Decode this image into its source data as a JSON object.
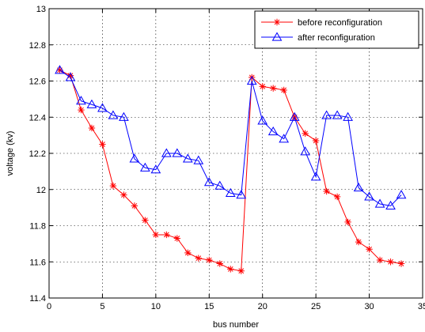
{
  "chart_data": {
    "type": "line",
    "title": "",
    "xlabel": "bus number",
    "ylabel": "voltage (kv)",
    "xlim": [
      0,
      35
    ],
    "ylim": [
      11.4,
      13
    ],
    "xticks": [
      0,
      5,
      10,
      15,
      20,
      25,
      30,
      35
    ],
    "yticks": [
      11.4,
      11.6,
      11.8,
      12,
      12.2,
      12.4,
      12.6,
      12.8,
      13
    ],
    "xtick_labels": [
      "0",
      "5",
      "10",
      "15",
      "20",
      "25",
      "30",
      "35"
    ],
    "ytick_labels": [
      "11.4",
      "11.6",
      "11.8",
      "12",
      "12.2",
      "12.4",
      "12.6",
      "12.8",
      "13"
    ],
    "grid": true,
    "legend_position": "top-right",
    "x": [
      1,
      2,
      3,
      4,
      5,
      6,
      7,
      8,
      9,
      10,
      11,
      12,
      13,
      14,
      15,
      16,
      17,
      18,
      19,
      20,
      21,
      22,
      23,
      24,
      25,
      26,
      27,
      28,
      29,
      30,
      31,
      32,
      33
    ],
    "series": [
      {
        "name": "before reconfiguration",
        "color": "#ff0000",
        "marker": "star",
        "values": [
          12.66,
          12.63,
          12.44,
          12.34,
          12.25,
          12.02,
          11.97,
          11.91,
          11.83,
          11.75,
          11.75,
          11.73,
          11.65,
          11.62,
          11.61,
          11.59,
          11.56,
          11.55,
          12.62,
          12.57,
          12.56,
          12.55,
          12.4,
          12.31,
          12.27,
          11.99,
          11.96,
          11.82,
          11.71,
          11.67,
          11.61,
          11.6,
          11.59
        ]
      },
      {
        "name": "after reconfiguration",
        "color": "#0000ff",
        "marker": "triangle",
        "values": [
          12.66,
          12.62,
          12.49,
          12.47,
          12.45,
          12.41,
          12.4,
          12.17,
          12.12,
          12.11,
          12.2,
          12.2,
          12.17,
          12.16,
          12.04,
          12.02,
          11.98,
          11.97,
          12.6,
          12.38,
          12.32,
          12.28,
          12.4,
          12.21,
          12.07,
          12.41,
          12.41,
          12.4,
          12.01,
          11.96,
          11.92,
          11.91,
          11.97
        ]
      }
    ]
  }
}
